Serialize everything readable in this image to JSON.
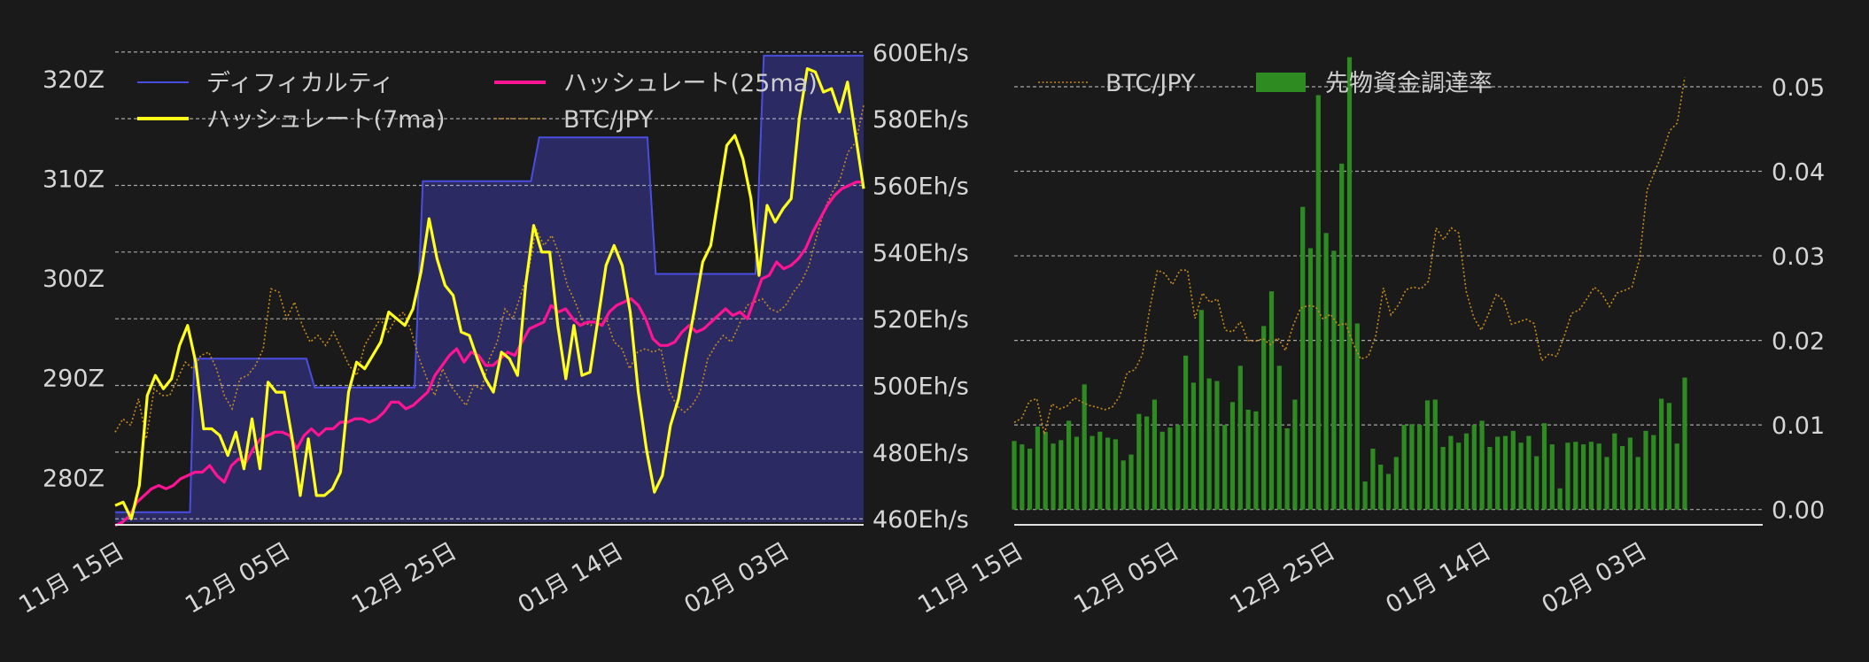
{
  "colors": {
    "background": "#1a1a1a",
    "difficulty_line": "#4a4ee0",
    "difficulty_fill": "#2b2a63",
    "hash7": "#ffff1a",
    "hash25": "#ff1493",
    "btc": "#c98a1a",
    "funding": "#2e8b22",
    "grid": "#bfbfbf",
    "text": "#d6d6d6"
  },
  "chart_data": [
    {
      "type": "line",
      "left_axis": {
        "ylim": [
          275.5,
          323
        ],
        "ticks": [
          280,
          290,
          300,
          310,
          320
        ],
        "tick_labels": [
          "280Z",
          "290Z",
          "300Z",
          "310Z",
          "320Z"
        ]
      },
      "right_axis": {
        "ylim": [
          459,
          601
        ],
        "ticks": [
          460,
          480,
          500,
          520,
          540,
          560,
          580,
          600
        ],
        "tick_labels": [
          "460Eh/s",
          "480Eh/s",
          "500Eh/s",
          "520Eh/s",
          "540Eh/s",
          "560Eh/s",
          "580Eh/s",
          "600Eh/s"
        ]
      },
      "x_ticks": [
        0,
        20,
        40,
        60,
        80
      ],
      "x_tick_labels": [
        "11月 15日",
        "12月 05日",
        "12月 25日",
        "01月 14日",
        "02月 03日"
      ],
      "xlim": [
        0,
        90
      ],
      "grid": true,
      "legend": [
        "ディフィカルティ",
        "ハッシュレート(7ma)",
        "ハッシュレート(25ma)",
        "BTC/JPY"
      ],
      "legend_placement": "top",
      "series": [
        {
          "name": "ディフィカルティ",
          "axis": "left",
          "step": true,
          "points": [
            [
              0,
              276.5
            ],
            [
              9,
              276.5
            ],
            [
              9.5,
              291.9
            ],
            [
              23,
              291.9
            ],
            [
              24,
              289.0
            ],
            [
              36,
              289.0
            ],
            [
              37,
              309.7
            ],
            [
              50,
              309.7
            ],
            [
              51,
              314.1
            ],
            [
              64,
              314.1
            ],
            [
              65,
              300.4
            ],
            [
              77,
              300.4
            ],
            [
              78,
              322.3
            ],
            [
              90,
              322.3
            ]
          ]
        },
        {
          "name": "ハッシュレート(7ma)",
          "axis": "right",
          "values": [
            464,
            465,
            460,
            470,
            497,
            503,
            499,
            502,
            512,
            518,
            507,
            487,
            487,
            485,
            479,
            486,
            475,
            490,
            475,
            501,
            498,
            498,
            484,
            467,
            484,
            467,
            467,
            469,
            474,
            498,
            507,
            505,
            509,
            513,
            522,
            520,
            518,
            523,
            534,
            550,
            538,
            530,
            527,
            516,
            515,
            508,
            502,
            498,
            510,
            508,
            503,
            530,
            548,
            540,
            540,
            518,
            502,
            518,
            503,
            504,
            520,
            536,
            542,
            536,
            522,
            498,
            481,
            468,
            473,
            488,
            496,
            510,
            523,
            537,
            542,
            557,
            572,
            575,
            568,
            556,
            533,
            554,
            549,
            553,
            556,
            580,
            595,
            594,
            588,
            589,
            582,
            591,
            575,
            559
          ]
        },
        {
          "name": "ハッシュレート(25ma)",
          "axis": "right",
          "values": [
            458,
            459,
            461,
            465,
            467,
            469,
            470,
            469,
            470,
            472,
            473,
            474,
            474,
            476,
            473,
            471,
            476,
            478,
            477,
            481,
            484,
            485,
            486,
            486,
            485,
            481,
            485,
            487,
            485,
            487,
            487,
            489,
            489,
            490,
            490,
            489,
            490,
            492,
            495,
            495,
            493,
            494,
            496,
            498,
            503,
            506,
            509,
            511,
            507,
            510,
            509,
            506,
            506,
            508,
            510,
            509,
            513,
            517,
            518,
            519,
            524,
            522,
            523,
            520,
            518,
            519,
            519,
            518,
            522,
            524,
            525,
            526,
            524,
            520,
            514,
            512,
            512,
            513,
            516,
            518,
            516,
            517,
            519,
            521,
            523,
            521,
            522,
            520,
            526,
            532,
            533,
            537,
            535,
            536,
            538,
            541,
            546,
            550,
            554,
            557,
            559,
            560,
            561,
            561
          ]
        },
        {
          "name": "BTC/JPY",
          "axis": "right",
          "values": [
            486,
            490,
            488,
            496,
            484,
            499,
            497,
            497,
            502,
            507,
            505,
            509,
            510,
            505,
            497,
            493,
            502,
            503,
            506,
            511,
            529,
            528,
            520,
            525,
            518,
            513,
            515,
            512,
            516,
            511,
            506,
            503,
            512,
            516,
            520,
            516,
            520,
            522,
            516,
            508,
            502,
            497,
            505,
            500,
            497,
            494,
            500,
            499,
            508,
            513,
            523,
            520,
            527,
            534,
            547,
            542,
            545,
            539,
            530,
            525,
            519,
            518,
            520,
            520,
            513,
            511,
            505,
            510,
            511,
            510,
            511,
            499,
            494,
            492,
            494,
            498,
            508,
            512,
            515,
            513,
            518,
            524,
            525,
            526,
            523,
            522,
            524,
            528,
            531,
            536,
            545,
            553,
            558,
            562,
            570,
            573,
            584
          ]
        }
      ]
    },
    {
      "type": "bar",
      "right_axis": {
        "ylim": [
          -0.0015,
          0.0545
        ],
        "ticks": [
          0.0,
          0.01,
          0.02,
          0.03,
          0.04,
          0.05
        ],
        "tick_labels": [
          "0.00",
          "0.01",
          "0.02",
          "0.03",
          "0.04",
          "0.05"
        ]
      },
      "x_ticks": [
        0,
        20,
        40,
        60,
        80
      ],
      "x_tick_labels": [
        "11月 15日",
        "12月 05日",
        "12月 25日",
        "01月 14日",
        "02月 03日"
      ],
      "xlim": [
        0,
        96
      ],
      "grid": true,
      "legend": [
        "BTC/JPY",
        "先物資金調達率"
      ],
      "legend_placement": "top",
      "series": [
        {
          "name": "先物資金調達率",
          "bars": [
            0.0081,
            0.0077,
            0.0072,
            0.0098,
            0.0092,
            0.0078,
            0.0082,
            0.0105,
            0.0086,
            0.0148,
            0.0087,
            0.0092,
            0.0085,
            0.0083,
            0.0058,
            0.0065,
            0.0113,
            0.011,
            0.013,
            0.0092,
            0.0097,
            0.01,
            0.0182,
            0.015,
            0.0236,
            0.0155,
            0.0152,
            0.01,
            0.0127,
            0.017,
            0.0118,
            0.0116,
            0.0217,
            0.0258,
            0.017,
            0.0096,
            0.013,
            0.0358,
            0.0309,
            0.049,
            0.0327,
            0.0306,
            0.0409,
            0.0535,
            0.022,
            0.0033,
            0.0072,
            0.0053,
            0.0042,
            0.0062,
            0.01,
            0.0101,
            0.01,
            0.0129,
            0.013,
            0.0074,
            0.0087,
            0.0079,
            0.009,
            0.01,
            0.0105,
            0.0074,
            0.0086,
            0.0087,
            0.0093,
            0.0079,
            0.0087,
            0.0063,
            0.0102,
            0.0077,
            0.0025,
            0.0079,
            0.008,
            0.0077,
            0.008,
            0.0078,
            0.0062,
            0.009,
            0.0075,
            0.0085,
            0.0062,
            0.0093,
            0.0088,
            0.0131,
            0.0126,
            0.0078,
            0.0156
          ]
        },
        {
          "name": "BTC/JPY",
          "values": [
            0.0103,
            0.0108,
            0.0128,
            0.0131,
            0.0089,
            0.0125,
            0.0119,
            0.0122,
            0.0132,
            0.0127,
            0.0123,
            0.0121,
            0.0118,
            0.0121,
            0.0134,
            0.0162,
            0.0165,
            0.0183,
            0.0238,
            0.0283,
            0.0279,
            0.0266,
            0.0283,
            0.0283,
            0.0226,
            0.0256,
            0.0245,
            0.0249,
            0.0212,
            0.021,
            0.0222,
            0.02,
            0.0199,
            0.0202,
            0.0195,
            0.0203,
            0.0188,
            0.0217,
            0.0238,
            0.0241,
            0.024,
            0.0225,
            0.0231,
            0.0218,
            0.022,
            0.0196,
            0.0178,
            0.0181,
            0.0206,
            0.0262,
            0.023,
            0.0242,
            0.026,
            0.0263,
            0.0261,
            0.027,
            0.0333,
            0.0319,
            0.0333,
            0.0327,
            0.0258,
            0.0227,
            0.0212,
            0.0232,
            0.0255,
            0.0247,
            0.0219,
            0.0222,
            0.0225,
            0.022,
            0.0176,
            0.0184,
            0.0181,
            0.0205,
            0.0232,
            0.0236,
            0.0249,
            0.0263,
            0.0255,
            0.024,
            0.0256,
            0.0259,
            0.0263,
            0.0296,
            0.0378,
            0.0399,
            0.0421,
            0.0448,
            0.0457,
            0.0511
          ]
        }
      ]
    }
  ]
}
